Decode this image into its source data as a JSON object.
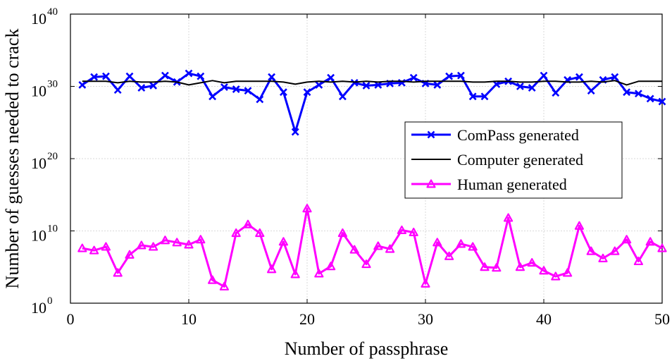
{
  "chart_data": {
    "type": "line",
    "title": "",
    "xlabel": "Number of passphrase",
    "ylabel": "Number of guesses needed to crack",
    "yscale": "log10",
    "xlim": [
      0,
      50
    ],
    "ylim_exponent": [
      0,
      40
    ],
    "grid": true,
    "x_ticks": [
      {
        "value": 0,
        "label": "0"
      },
      {
        "value": 10,
        "label": "10"
      },
      {
        "value": 20,
        "label": "20"
      },
      {
        "value": 30,
        "label": "30"
      },
      {
        "value": 40,
        "label": "40"
      },
      {
        "value": 50,
        "label": "50"
      }
    ],
    "y_ticks": [
      {
        "exp": 0,
        "base": "10",
        "sup": "0"
      },
      {
        "exp": 10,
        "base": "10",
        "sup": "10"
      },
      {
        "exp": 20,
        "base": "10",
        "sup": "20"
      },
      {
        "exp": 30,
        "base": "10",
        "sup": "30"
      },
      {
        "exp": 40,
        "base": "10",
        "sup": "40"
      }
    ],
    "legend": "center-right",
    "x": [
      1,
      2,
      3,
      4,
      5,
      6,
      7,
      8,
      9,
      10,
      11,
      12,
      13,
      14,
      15,
      16,
      17,
      18,
      19,
      20,
      21,
      22,
      23,
      24,
      25,
      26,
      27,
      28,
      29,
      30,
      31,
      32,
      33,
      34,
      35,
      36,
      37,
      38,
      39,
      40,
      41,
      42,
      43,
      44,
      45,
      46,
      47,
      48,
      49,
      50
    ],
    "series": [
      {
        "name": "ComPass generated",
        "color": "#0000ff",
        "marker": "x",
        "log10_values": [
          30.2,
          31.3,
          31.4,
          29.5,
          31.4,
          29.8,
          30.1,
          31.5,
          30.6,
          31.8,
          31.4,
          28.6,
          29.9,
          29.6,
          29.4,
          28.2,
          31.3,
          29.2,
          23.7,
          29.2,
          30.2,
          31.2,
          28.6,
          30.5,
          30.1,
          30.2,
          30.4,
          30.5,
          31.2,
          30.4,
          30.2,
          31.4,
          31.5,
          28.6,
          28.6,
          30.3,
          30.7,
          30.0,
          29.8,
          31.5,
          29.1,
          30.9,
          31.3,
          29.4,
          30.9,
          31.3,
          29.2,
          29.0,
          28.3,
          27.9
        ]
      },
      {
        "name": "Computer generated",
        "color": "#000000",
        "marker": "none",
        "log10_values": [
          30.7,
          30.7,
          30.7,
          30.5,
          30.7,
          30.6,
          30.6,
          30.7,
          30.6,
          30.2,
          30.5,
          30.8,
          30.5,
          30.7,
          30.7,
          30.7,
          30.7,
          30.6,
          30.3,
          30.6,
          30.7,
          30.6,
          30.7,
          30.6,
          30.7,
          30.6,
          30.7,
          30.7,
          30.6,
          30.7,
          30.7,
          30.7,
          30.7,
          30.6,
          30.6,
          30.7,
          30.7,
          30.6,
          30.6,
          30.7,
          30.7,
          30.6,
          30.6,
          30.7,
          30.6,
          30.8,
          30.2,
          30.7,
          30.7,
          30.7
        ]
      },
      {
        "name": "Human generated",
        "color": "#ff00ff",
        "marker": "triangle",
        "log10_values": [
          7.6,
          7.3,
          7.8,
          4.2,
          6.7,
          8.0,
          7.8,
          8.7,
          8.4,
          8.1,
          8.8,
          3.2,
          2.3,
          9.7,
          10.9,
          9.7,
          4.7,
          8.5,
          4.0,
          13.1,
          4.1,
          5.1,
          9.7,
          7.4,
          5.4,
          7.9,
          7.5,
          10.1,
          9.8,
          2.7,
          8.4,
          6.5,
          8.2,
          7.8,
          5.0,
          4.9,
          11.8,
          5.0,
          5.6,
          4.5,
          3.7,
          4.2,
          10.7,
          7.2,
          6.2,
          7.2,
          8.8,
          5.8,
          8.5,
          7.6
        ]
      }
    ]
  }
}
